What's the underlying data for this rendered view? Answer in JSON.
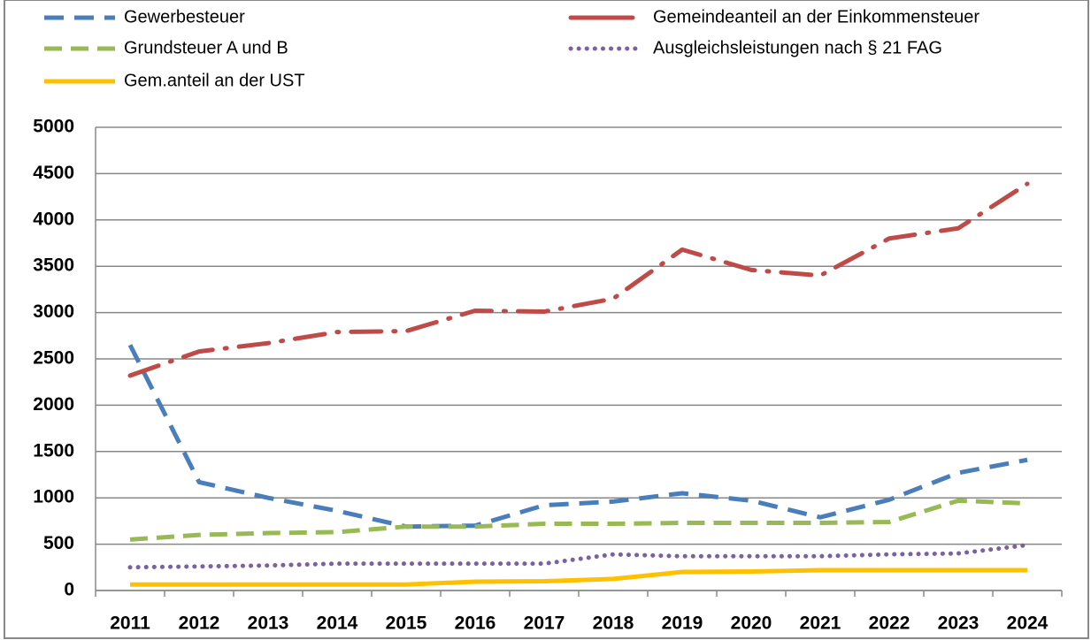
{
  "chart_data": {
    "type": "line",
    "categories": [
      "2011",
      "2012",
      "2013",
      "2014",
      "2015",
      "2016",
      "2017",
      "2018",
      "2019",
      "2020",
      "2021",
      "2022",
      "2023",
      "2024"
    ],
    "series": [
      {
        "name": "Gewerbesteuer",
        "color": "#4a7ebb",
        "values": [
          2650,
          1170,
          1000,
          860,
          690,
          700,
          920,
          960,
          1050,
          970,
          790,
          980,
          1270,
          1410
        ]
      },
      {
        "name": "Gemeindeanteil an der Einkommensteuer",
        "color": "#be4b48",
        "values": [
          2320,
          2580,
          2670,
          2790,
          2800,
          3020,
          3010,
          3150,
          3680,
          3460,
          3400,
          3800,
          3910,
          4390
        ]
      },
      {
        "name": "Grundsteuer A und B",
        "color": "#98b954",
        "values": [
          550,
          600,
          620,
          630,
          690,
          690,
          720,
          720,
          730,
          730,
          730,
          740,
          970,
          940
        ]
      },
      {
        "name": "Ausgleichsleistungen nach § 21 FAG",
        "color": "#7d60a0",
        "values": [
          250,
          260,
          270,
          290,
          290,
          290,
          290,
          390,
          370,
          370,
          370,
          390,
          400,
          490
        ]
      },
      {
        "name": "Gem.anteil an der UST",
        "color": "#ffc000",
        "values": [
          65,
          65,
          65,
          65,
          65,
          95,
          100,
          125,
          200,
          205,
          220,
          220,
          220,
          220
        ]
      }
    ],
    "ylim": [
      0,
      5000
    ],
    "yticks": [
      0,
      500,
      1000,
      1500,
      2000,
      2500,
      3000,
      3500,
      4000,
      4500,
      5000
    ],
    "grid": true,
    "legend": "top"
  }
}
